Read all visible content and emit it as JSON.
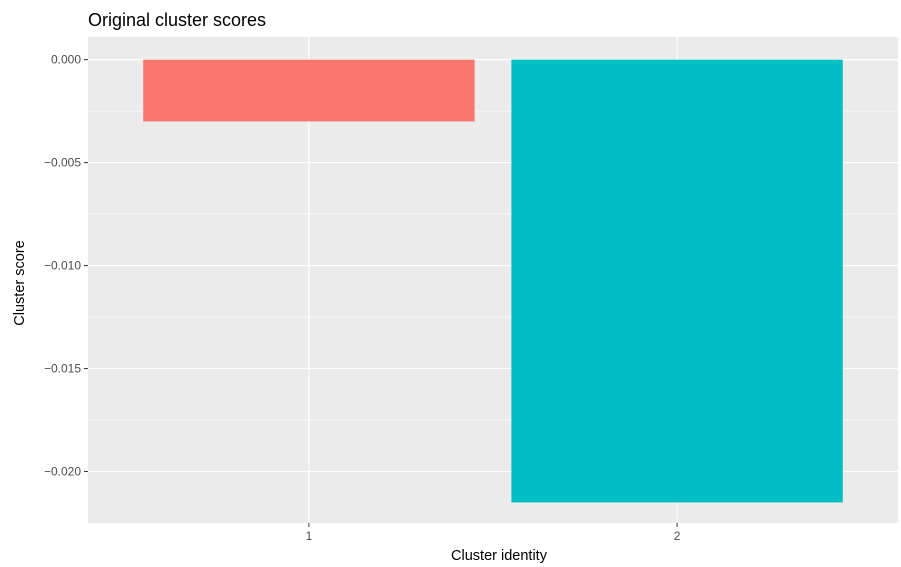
{
  "chart_data": {
    "type": "bar",
    "title": "Original cluster scores",
    "xlabel": "Cluster identity",
    "ylabel": "Cluster score",
    "categories": [
      "1",
      "2"
    ],
    "values": [
      -0.003,
      -0.0215
    ],
    "colors": [
      "#F8766D",
      "#00BFC4"
    ],
    "ylim": [
      -0.0225,
      0.0011
    ],
    "yticks": [
      0.0,
      -0.005,
      -0.01,
      -0.015,
      -0.02
    ],
    "ytick_labels": [
      "0.000",
      "−0.005",
      "−0.010",
      "−0.015",
      "−0.020"
    ],
    "grid": true,
    "legend": "none",
    "panel_color": "#EBEBEB",
    "grid_color": "#FFFFFF"
  }
}
